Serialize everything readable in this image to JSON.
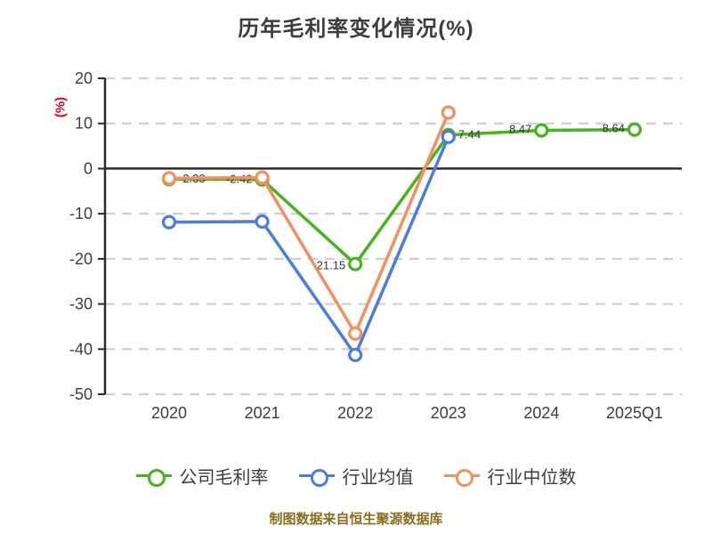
{
  "title": "历年毛利率变化情况(%)",
  "caption": "制图数据来自恒生聚源数据库",
  "colors": {
    "title": "#3d3d3d",
    "ylabel": "#e60012",
    "caption": "#8a6d1c",
    "axis": "#2b2b2b",
    "gridline": "#d0d0d0",
    "tick_text": "#3d3d3d",
    "data_label": "#333333"
  },
  "chart_data": {
    "type": "line",
    "title": "历年毛利率变化情况(%)",
    "xlabel": "",
    "ylabel": "(%)",
    "categories": [
      "2020",
      "2021",
      "2022",
      "2023",
      "2024",
      "2025Q1"
    ],
    "ylim": [
      -50,
      20
    ],
    "yticks": [
      20,
      10,
      0,
      -10,
      -20,
      -30,
      -40,
      -50
    ],
    "grid": "horizontal-dashed",
    "legend_position": "bottom",
    "marker": "hollow-circle",
    "series": [
      {
        "name": "公司毛利率",
        "color": "#45b619",
        "values": [
          -2.33,
          -2.42,
          -21.15,
          7.44,
          8.47,
          8.64
        ],
        "labels": [
          "-2.33",
          "-2.42",
          "-21.15",
          "7.44",
          "8.47",
          "8.64"
        ]
      },
      {
        "name": "行业均值",
        "color": "#4a7ce6",
        "values": [
          -11.87,
          -11.73,
          -41.29,
          7.03,
          null,
          null
        ],
        "labels": null
      },
      {
        "name": "行业中位数",
        "color": "#f68f5f",
        "values": [
          -2.15,
          -1.98,
          -36.54,
          12.41,
          null,
          null
        ],
        "labels": null
      }
    ]
  }
}
